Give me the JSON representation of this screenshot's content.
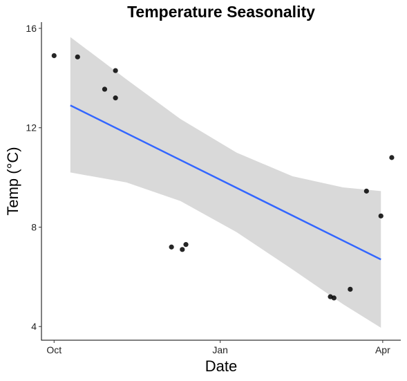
{
  "chart_data": {
    "type": "scatter",
    "title": "Temperature Seasonality",
    "xlabel": "Date",
    "ylabel": "Temp (°C)",
    "x_ticks": [
      {
        "date": "2016-10-01",
        "label": "Oct"
      },
      {
        "date": "2017-01-01",
        "label": "Jan"
      },
      {
        "date": "2017-04-01",
        "label": "Apr"
      }
    ],
    "y_ticks": [
      4,
      8,
      12,
      16
    ],
    "xlim": [
      "2016-09-24",
      "2017-04-11"
    ],
    "ylim": [
      3.45,
      16.25
    ],
    "grid": false,
    "points": [
      {
        "x": "2016-10-01",
        "y": 14.9
      },
      {
        "x": "2016-10-14",
        "y": 14.85
      },
      {
        "x": "2016-10-29",
        "y": 13.55
      },
      {
        "x": "2016-11-04",
        "y": 14.3
      },
      {
        "x": "2016-11-04",
        "y": 13.2
      },
      {
        "x": "2016-12-05",
        "y": 7.2
      },
      {
        "x": "2016-12-11",
        "y": 7.1
      },
      {
        "x": "2016-12-13",
        "y": 7.3
      },
      {
        "x": "2017-03-03",
        "y": 5.2
      },
      {
        "x": "2017-03-05",
        "y": 5.15
      },
      {
        "x": "2017-03-14",
        "y": 5.5
      },
      {
        "x": "2017-03-23",
        "y": 9.45
      },
      {
        "x": "2017-03-31",
        "y": 8.45
      },
      {
        "x": "2017-04-06",
        "y": 10.8
      }
    ],
    "fit_line": {
      "color": "#3366ff",
      "x": [
        "2016-10-10",
        "2017-03-31"
      ],
      "y": [
        12.9,
        6.7
      ]
    },
    "confidence_band": {
      "color": "#d9d9d9",
      "x": [
        "2016-10-10",
        "2016-11-10",
        "2016-12-10",
        "2017-01-10",
        "2017-02-10",
        "2017-03-10",
        "2017-03-31"
      ],
      "upper": [
        15.65,
        13.95,
        12.35,
        11.0,
        10.05,
        9.6,
        9.45
      ],
      "lower": [
        10.2,
        9.8,
        9.05,
        7.8,
        6.3,
        4.9,
        3.95
      ]
    }
  }
}
